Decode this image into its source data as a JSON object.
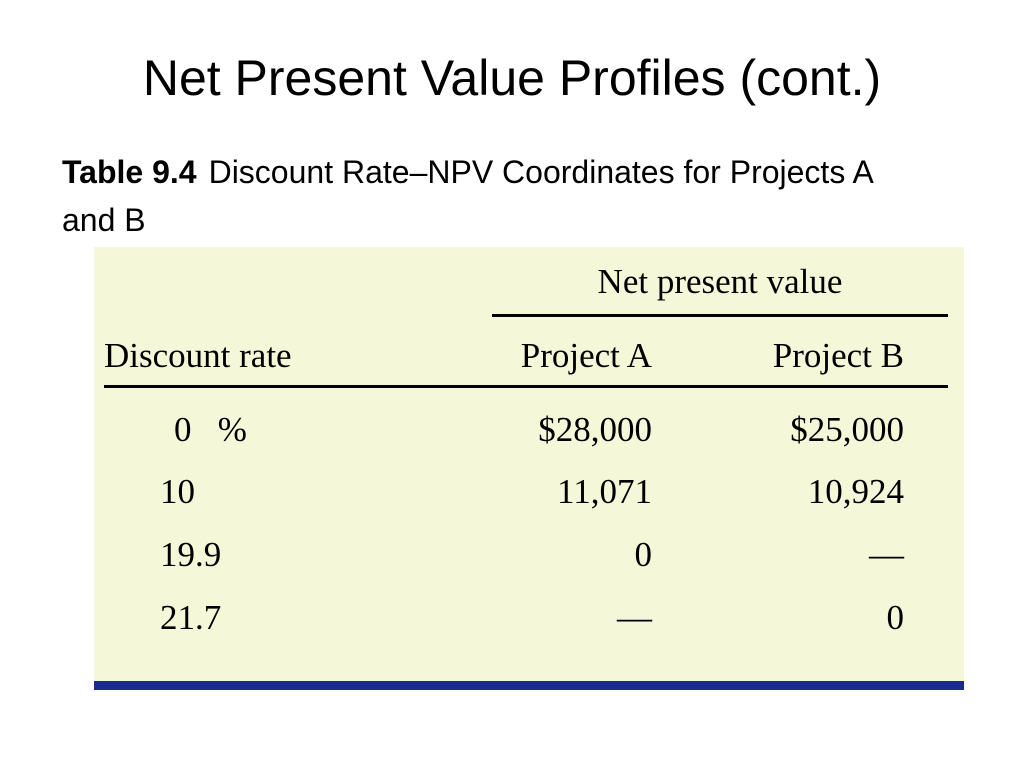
{
  "slide": {
    "title": "Net Present Value Profiles (cont.)",
    "caption_lead": "Table 9.4",
    "caption_text": "Discount Rate–NPV Coordinates for Projects A and B"
  },
  "table": {
    "group_header": "Net present value",
    "columns": [
      "Discount rate",
      "Project A",
      "Project B"
    ],
    "rows": [
      [
        "0   %",
        "$28,000",
        "$25,000"
      ],
      [
        "10",
        "11,071",
        "10,924"
      ],
      [
        "19.9",
        "0",
        "—"
      ],
      [
        "21.7",
        "—",
        "0"
      ]
    ]
  },
  "colors": {
    "panel_background": "#f5f8d8",
    "bottom_rule": "#1b2b8c"
  }
}
